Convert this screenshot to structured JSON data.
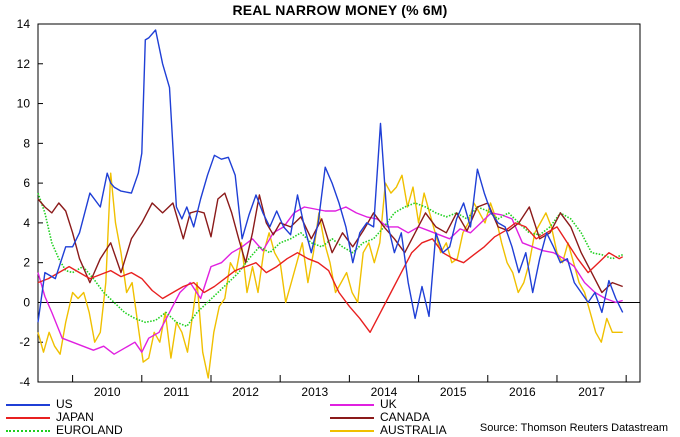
{
  "chart_data": {
    "type": "line",
    "title": "REAL NARROW MONEY (% 6M)",
    "xlabel": "",
    "ylabel": "",
    "ylim": [
      -4,
      14
    ],
    "yticks": [
      -4,
      -2,
      0,
      2,
      4,
      6,
      8,
      10,
      12,
      14
    ],
    "xlim": [
      2009.5,
      2018.2
    ],
    "x_tick_labels": [
      "2010",
      "2011",
      "2012",
      "2013",
      "2014",
      "2015",
      "2016",
      "2017"
    ],
    "zero_line": true,
    "grid": false,
    "legend_position": "bottom",
    "source": "Source: Thomson Reuters Datastream",
    "series": [
      {
        "name": "US",
        "color": "#1f3fd6",
        "style": "solid",
        "x": [
          2009.5,
          2009.6,
          2009.75,
          2009.9,
          2010.0,
          2010.1,
          2010.25,
          2010.4,
          2010.5,
          2010.55,
          2010.6,
          2010.7,
          2010.85,
          2010.95,
          2011.0,
          2011.05,
          2011.1,
          2011.2,
          2011.3,
          2011.4,
          2011.5,
          2011.58,
          2011.65,
          2011.75,
          2011.85,
          2011.95,
          2012.05,
          2012.15,
          2012.25,
          2012.35,
          2012.45,
          2012.55,
          2012.65,
          2012.75,
          2012.85,
          2012.95,
          2013.05,
          2013.15,
          2013.25,
          2013.35,
          2013.45,
          2013.55,
          2013.65,
          2013.75,
          2013.85,
          2013.95,
          2014.05,
          2014.15,
          2014.25,
          2014.35,
          2014.45,
          2014.55,
          2014.65,
          2014.75,
          2014.85,
          2014.95,
          2015.05,
          2015.15,
          2015.25,
          2015.35,
          2015.45,
          2015.55,
          2015.65,
          2015.75,
          2015.85,
          2015.95,
          2016.05,
          2016.15,
          2016.25,
          2016.35,
          2016.45,
          2016.55,
          2016.65,
          2016.75,
          2016.85,
          2016.95,
          2017.05,
          2017.15,
          2017.25,
          2017.35,
          2017.45,
          2017.55,
          2017.65,
          2017.75,
          2017.85,
          2017.95
        ],
        "y": [
          -1.0,
          1.5,
          1.2,
          2.8,
          2.8,
          3.5,
          5.5,
          4.8,
          6.5,
          6.0,
          5.8,
          5.6,
          5.5,
          6.5,
          7.5,
          13.2,
          13.3,
          13.7,
          12.0,
          10.8,
          4.8,
          4.2,
          4.8,
          3.8,
          5.2,
          6.4,
          7.4,
          7.2,
          7.3,
          6.4,
          3.2,
          4.4,
          5.4,
          4.5,
          3.8,
          4.6,
          3.8,
          3.4,
          5.4,
          3.8,
          2.5,
          4.0,
          6.8,
          6.0,
          5.0,
          3.8,
          2.0,
          3.5,
          4.0,
          3.8,
          9.0,
          4.0,
          2.5,
          3.5,
          1.0,
          -0.8,
          0.8,
          -0.7,
          3.5,
          2.5,
          2.8,
          4.2,
          5.0,
          3.8,
          6.7,
          5.5,
          4.5,
          4.0,
          3.8,
          2.8,
          1.5,
          2.5,
          0.5,
          2.2,
          3.5,
          2.8,
          2.0,
          2.2,
          1.0,
          0.5,
          0.0,
          0.5,
          -0.5,
          1.1,
          0.2,
          -0.5
        ]
      },
      {
        "name": "UK",
        "color": "#e020e0",
        "style": "solid",
        "x": [
          2009.5,
          2009.6,
          2009.7,
          2009.85,
          2010.0,
          2010.15,
          2010.3,
          2010.45,
          2010.6,
          2010.75,
          2010.9,
          2011.0,
          2011.1,
          2011.25,
          2011.4,
          2011.55,
          2011.7,
          2011.85,
          2012.0,
          2012.15,
          2012.3,
          2012.45,
          2012.6,
          2012.75,
          2012.9,
          2013.05,
          2013.2,
          2013.35,
          2013.5,
          2013.65,
          2013.8,
          2013.95,
          2014.1,
          2014.25,
          2014.4,
          2014.55,
          2014.7,
          2014.85,
          2015.0,
          2015.15,
          2015.3,
          2015.45,
          2015.6,
          2015.75,
          2015.9,
          2016.05,
          2016.2,
          2016.35,
          2016.5,
          2016.65,
          2016.8,
          2016.95,
          2017.1,
          2017.25,
          2017.4,
          2017.55,
          2017.7,
          2017.85,
          2017.95
        ],
        "y": [
          1.5,
          0.3,
          -0.5,
          -1.8,
          -2.0,
          -2.2,
          -2.4,
          -2.2,
          -2.6,
          -2.3,
          -2.0,
          -2.5,
          -1.8,
          -1.5,
          -0.5,
          0.5,
          1.0,
          0.2,
          1.8,
          2.0,
          2.5,
          2.8,
          3.2,
          2.6,
          3.5,
          3.8,
          4.5,
          4.8,
          4.7,
          4.6,
          4.6,
          4.8,
          4.5,
          4.3,
          4.2,
          3.8,
          3.8,
          3.5,
          3.8,
          3.6,
          3.4,
          3.2,
          3.7,
          3.5,
          4.0,
          4.5,
          4.4,
          4.2,
          3.0,
          2.8,
          2.6,
          2.5,
          2.2,
          1.8,
          1.0,
          0.5,
          0.2,
          0.0,
          0.1
        ]
      },
      {
        "name": "JAPAN",
        "color": "#e82020",
        "style": "solid",
        "x": [
          2009.5,
          2009.65,
          2009.8,
          2009.95,
          2010.1,
          2010.25,
          2010.4,
          2010.55,
          2010.7,
          2010.85,
          2011.0,
          2011.15,
          2011.3,
          2011.45,
          2011.6,
          2011.75,
          2011.9,
          2012.05,
          2012.2,
          2012.35,
          2012.5,
          2012.65,
          2012.8,
          2012.95,
          2013.1,
          2013.25,
          2013.4,
          2013.55,
          2013.7,
          2013.85,
          2014.0,
          2014.15,
          2014.3,
          2014.45,
          2014.6,
          2014.75,
          2014.9,
          2015.05,
          2015.2,
          2015.35,
          2015.5,
          2015.65,
          2015.8,
          2015.95,
          2016.1,
          2016.25,
          2016.4,
          2016.55,
          2016.7,
          2016.85,
          2017.0,
          2017.15,
          2017.3,
          2017.45,
          2017.6,
          2017.75,
          2017.9,
          2017.95
        ],
        "y": [
          1.0,
          1.2,
          1.5,
          1.8,
          1.5,
          1.2,
          1.4,
          1.6,
          1.3,
          1.5,
          1.2,
          0.6,
          0.2,
          0.5,
          0.8,
          1.0,
          0.5,
          0.8,
          1.2,
          1.6,
          1.8,
          2.0,
          1.5,
          1.8,
          2.2,
          2.5,
          2.2,
          2.0,
          1.6,
          0.5,
          -0.2,
          -0.8,
          -1.5,
          -0.5,
          0.5,
          1.5,
          2.5,
          3.0,
          3.2,
          2.5,
          2.2,
          2.0,
          2.4,
          2.8,
          3.3,
          3.6,
          4.0,
          3.8,
          3.2,
          3.5,
          3.8,
          3.0,
          2.2,
          1.5,
          2.0,
          2.5,
          2.2,
          2.3
        ]
      },
      {
        "name": "CANADA",
        "color": "#8b1a1a",
        "style": "solid",
        "x": [
          2009.5,
          2009.6,
          2009.7,
          2009.8,
          2009.9,
          2010.0,
          2010.1,
          2010.25,
          2010.4,
          2010.55,
          2010.7,
          2010.85,
          2011.0,
          2011.15,
          2011.3,
          2011.45,
          2011.6,
          2011.7,
          2011.8,
          2011.9,
          2012.0,
          2012.1,
          2012.2,
          2012.3,
          2012.4,
          2012.5,
          2012.6,
          2012.7,
          2012.8,
          2012.9,
          2013.0,
          2013.15,
          2013.3,
          2013.45,
          2013.6,
          2013.75,
          2013.9,
          2014.05,
          2014.2,
          2014.35,
          2014.5,
          2014.65,
          2014.8,
          2014.95,
          2015.1,
          2015.25,
          2015.4,
          2015.55,
          2015.7,
          2015.85,
          2016.0,
          2016.15,
          2016.3,
          2016.45,
          2016.6,
          2016.75,
          2016.9,
          2017.05,
          2017.2,
          2017.35,
          2017.5,
          2017.65,
          2017.8,
          2017.95
        ],
        "y": [
          5.2,
          4.8,
          4.5,
          5.0,
          4.6,
          3.5,
          2.2,
          1.0,
          2.2,
          3.0,
          1.5,
          3.2,
          4.0,
          5.0,
          4.5,
          5.0,
          3.2,
          4.5,
          4.6,
          4.5,
          3.3,
          5.2,
          5.5,
          4.5,
          3.2,
          2.0,
          3.5,
          5.4,
          4.0,
          3.4,
          4.0,
          3.8,
          4.3,
          3.2,
          4.2,
          2.5,
          3.5,
          2.8,
          3.6,
          4.5,
          3.8,
          3.2,
          2.5,
          3.5,
          4.5,
          3.8,
          3.5,
          4.5,
          3.6,
          4.8,
          5.0,
          3.8,
          3.6,
          4.0,
          4.8,
          3.2,
          3.5,
          4.5,
          3.8,
          2.5,
          1.5,
          0.5,
          1.0,
          0.8
        ]
      },
      {
        "name": "EUROLAND",
        "color": "#20d020",
        "style": "dotted",
        "x": [
          2009.5,
          2009.6,
          2009.7,
          2009.8,
          2009.9,
          2010.0,
          2010.15,
          2010.3,
          2010.45,
          2010.6,
          2010.75,
          2010.9,
          2011.05,
          2011.2,
          2011.35,
          2011.5,
          2011.65,
          2011.8,
          2011.95,
          2012.1,
          2012.25,
          2012.4,
          2012.55,
          2012.7,
          2012.85,
          2013.0,
          2013.15,
          2013.3,
          2013.45,
          2013.6,
          2013.75,
          2013.9,
          2014.05,
          2014.2,
          2014.35,
          2014.5,
          2014.65,
          2014.8,
          2014.95,
          2015.1,
          2015.25,
          2015.4,
          2015.55,
          2015.7,
          2015.85,
          2016.0,
          2016.15,
          2016.3,
          2016.45,
          2016.6,
          2016.75,
          2016.9,
          2017.05,
          2017.2,
          2017.35,
          2017.5,
          2017.65,
          2017.8,
          2017.95
        ],
        "y": [
          5.5,
          4.5,
          3.0,
          2.2,
          1.6,
          1.5,
          1.8,
          1.2,
          0.5,
          0.0,
          -0.5,
          -0.8,
          -1.0,
          -0.9,
          -0.5,
          -1.0,
          -1.2,
          -0.5,
          0.0,
          0.5,
          1.0,
          1.5,
          2.2,
          2.8,
          2.5,
          3.0,
          3.2,
          3.5,
          3.0,
          2.8,
          3.2,
          2.8,
          2.5,
          3.0,
          3.2,
          3.8,
          4.5,
          4.8,
          5.0,
          4.8,
          4.5,
          4.3,
          4.5,
          4.2,
          4.8,
          4.6,
          4.2,
          4.5,
          4.0,
          3.5,
          3.4,
          3.8,
          4.5,
          4.2,
          3.5,
          2.5,
          2.4,
          2.2,
          2.4
        ]
      },
      {
        "name": "AUSTRALIA",
        "color": "#f0c000",
        "style": "solid",
        "x": [
          2009.5,
          2009.58,
          2009.66,
          2009.74,
          2009.82,
          2009.9,
          2010.0,
          2010.08,
          2010.16,
          2010.24,
          2010.32,
          2010.4,
          2010.48,
          2010.55,
          2010.62,
          2010.7,
          2010.78,
          2010.86,
          2010.94,
          2011.02,
          2011.1,
          2011.18,
          2011.26,
          2011.34,
          2011.42,
          2011.5,
          2011.58,
          2011.66,
          2011.72,
          2011.8,
          2011.88,
          2011.96,
          2012.04,
          2012.12,
          2012.2,
          2012.28,
          2012.36,
          2012.44,
          2012.52,
          2012.6,
          2012.68,
          2012.76,
          2012.84,
          2012.92,
          2013.0,
          2013.08,
          2013.16,
          2013.24,
          2013.32,
          2013.4,
          2013.48,
          2013.56,
          2013.64,
          2013.72,
          2013.8,
          2013.88,
          2013.96,
          2014.04,
          2014.12,
          2014.2,
          2014.28,
          2014.36,
          2014.44,
          2014.52,
          2014.6,
          2014.68,
          2014.76,
          2014.84,
          2014.92,
          2015.0,
          2015.08,
          2015.16,
          2015.24,
          2015.32,
          2015.4,
          2015.48,
          2015.56,
          2015.64,
          2015.72,
          2015.8,
          2015.88,
          2015.96,
          2016.04,
          2016.12,
          2016.2,
          2016.28,
          2016.36,
          2016.44,
          2016.52,
          2016.6,
          2016.68,
          2016.76,
          2016.84,
          2016.92,
          2017.0,
          2017.08,
          2017.16,
          2017.24,
          2017.32,
          2017.4,
          2017.48,
          2017.56,
          2017.64,
          2017.72,
          2017.8,
          2017.88,
          2017.95
        ],
        "y": [
          -1.5,
          -2.5,
          -1.5,
          -2.2,
          -2.6,
          -1.0,
          0.5,
          0.2,
          0.5,
          -0.5,
          -2.0,
          -1.5,
          1.0,
          6.5,
          4.0,
          2.5,
          0.5,
          1.0,
          -1.0,
          -3.0,
          -2.8,
          -1.5,
          -2.0,
          -0.5,
          -2.8,
          -1.0,
          -1.5,
          -2.5,
          -1.0,
          1.0,
          -2.5,
          -3.8,
          -1.5,
          -0.2,
          0.2,
          2.0,
          1.5,
          3.0,
          0.5,
          1.8,
          0.5,
          2.5,
          3.5,
          2.5,
          2.0,
          0.0,
          1.0,
          2.0,
          3.0,
          1.0,
          2.5,
          4.5,
          3.0,
          2.0,
          0.5,
          1.0,
          1.5,
          0.5,
          0.0,
          2.5,
          3.0,
          2.0,
          3.0,
          6.0,
          5.5,
          5.8,
          6.4,
          4.8,
          5.8,
          4.0,
          5.5,
          4.5,
          3.5,
          2.5,
          3.0,
          2.0,
          2.2,
          3.5,
          4.0,
          5.0,
          4.5,
          4.0,
          5.0,
          4.2,
          3.0,
          2.0,
          1.5,
          0.5,
          1.0,
          2.0,
          3.5,
          4.0,
          4.5,
          3.8,
          2.5,
          2.0,
          3.0,
          2.0,
          1.0,
          0.5,
          -0.5,
          -1.5,
          -2.0,
          -0.8,
          -1.5,
          -1.5,
          -1.5
        ]
      }
    ]
  }
}
